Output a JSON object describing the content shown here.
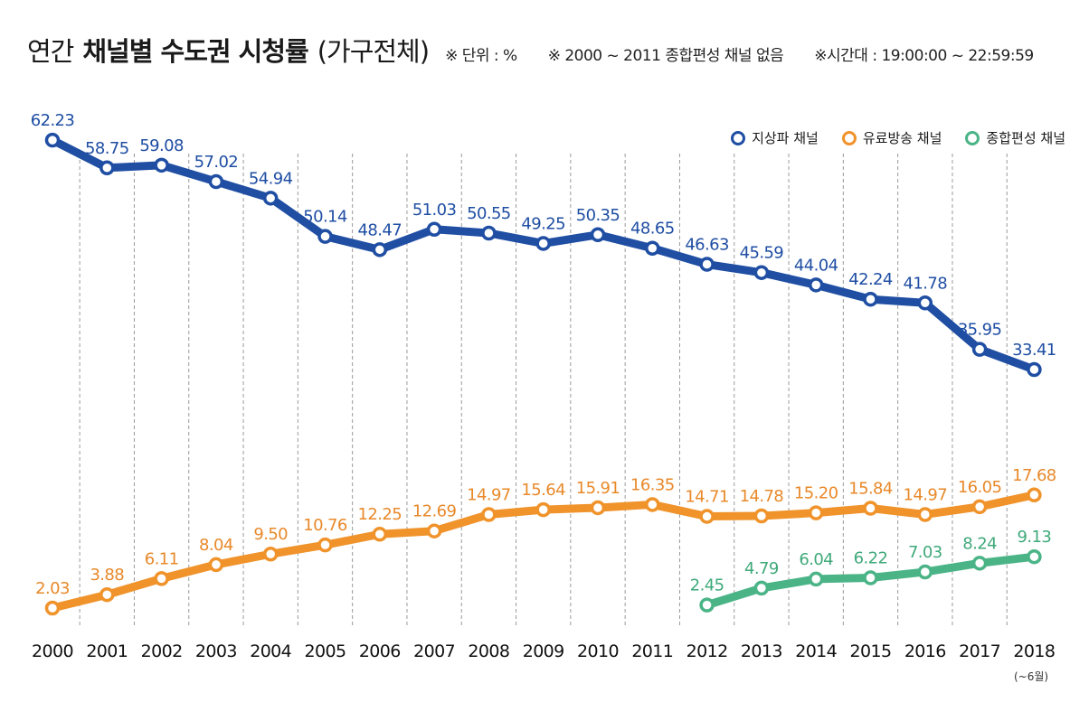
{
  "title": {
    "prefix": "연간",
    "bold": "채널별 수도권 시청률",
    "suffix": "(가구전체)"
  },
  "notes": [
    "※ 단위 : %",
    "※ 2000 ~ 2011 종합편성 채널 없음",
    "※시간대 : 19:00:00 ~ 22:59:59"
  ],
  "footnote": "(~6월)",
  "colors": {
    "terrestrial": "#1f4ea3",
    "paid": "#f0932b",
    "general": "#4bb487",
    "label_terrestrial": "#1f4ea3",
    "label_paid": "#e8892a",
    "label_general": "#3fa97a"
  },
  "chart_data": {
    "type": "line",
    "title": "연간 채널별 수도권 시청률 (가구전체)",
    "xlabel": "",
    "ylabel": "",
    "unit": "%",
    "legend_position": "top-right",
    "categories": [
      "2000",
      "2001",
      "2002",
      "2003",
      "2004",
      "2005",
      "2006",
      "2007",
      "2008",
      "2009",
      "2010",
      "2011",
      "2012",
      "2013",
      "2014",
      "2015",
      "2016",
      "2017",
      "2018"
    ],
    "series": [
      {
        "key": "terrestrial",
        "name": "지상파 채널",
        "values": [
          62.23,
          58.75,
          59.08,
          57.02,
          54.94,
          50.14,
          48.47,
          51.03,
          50.55,
          49.25,
          50.35,
          48.65,
          46.63,
          45.59,
          44.04,
          42.24,
          41.78,
          35.95,
          33.41
        ],
        "labels": [
          "62.23",
          "58.75",
          "59.08",
          "57.02",
          "54.94",
          "50.14",
          "48.47",
          "51.03",
          "50.55",
          "49.25",
          "50.35",
          "48.65",
          "46.63",
          "45.59",
          "44.04",
          "42.24",
          "41.78",
          "35.95",
          "33.41"
        ]
      },
      {
        "key": "paid",
        "name": "유료방송 채널",
        "values": [
          2.03,
          3.88,
          6.11,
          8.04,
          9.5,
          10.76,
          12.25,
          12.69,
          14.97,
          15.64,
          15.91,
          16.35,
          14.71,
          14.78,
          15.2,
          15.84,
          14.97,
          16.05,
          17.68
        ],
        "labels": [
          "2.03",
          "3.88",
          "6.11",
          "8.04",
          "9.50",
          "10.76",
          "12.25",
          "12.69",
          "14.97",
          "15.64",
          "15.91",
          "16.35",
          "14.71",
          "14.78",
          "15.20",
          "15.84",
          "14.97",
          "16.05",
          "17.68"
        ]
      },
      {
        "key": "general",
        "name": "종합편성 채널",
        "values": [
          null,
          null,
          null,
          null,
          null,
          null,
          null,
          null,
          null,
          null,
          null,
          null,
          2.45,
          4.79,
          6.04,
          6.22,
          7.03,
          8.24,
          9.13
        ],
        "labels": [
          null,
          null,
          null,
          null,
          null,
          null,
          null,
          null,
          null,
          null,
          null,
          null,
          "2.45",
          "4.79",
          "6.04",
          "6.22",
          "7.03",
          "8.24",
          "9.13"
        ]
      }
    ]
  }
}
